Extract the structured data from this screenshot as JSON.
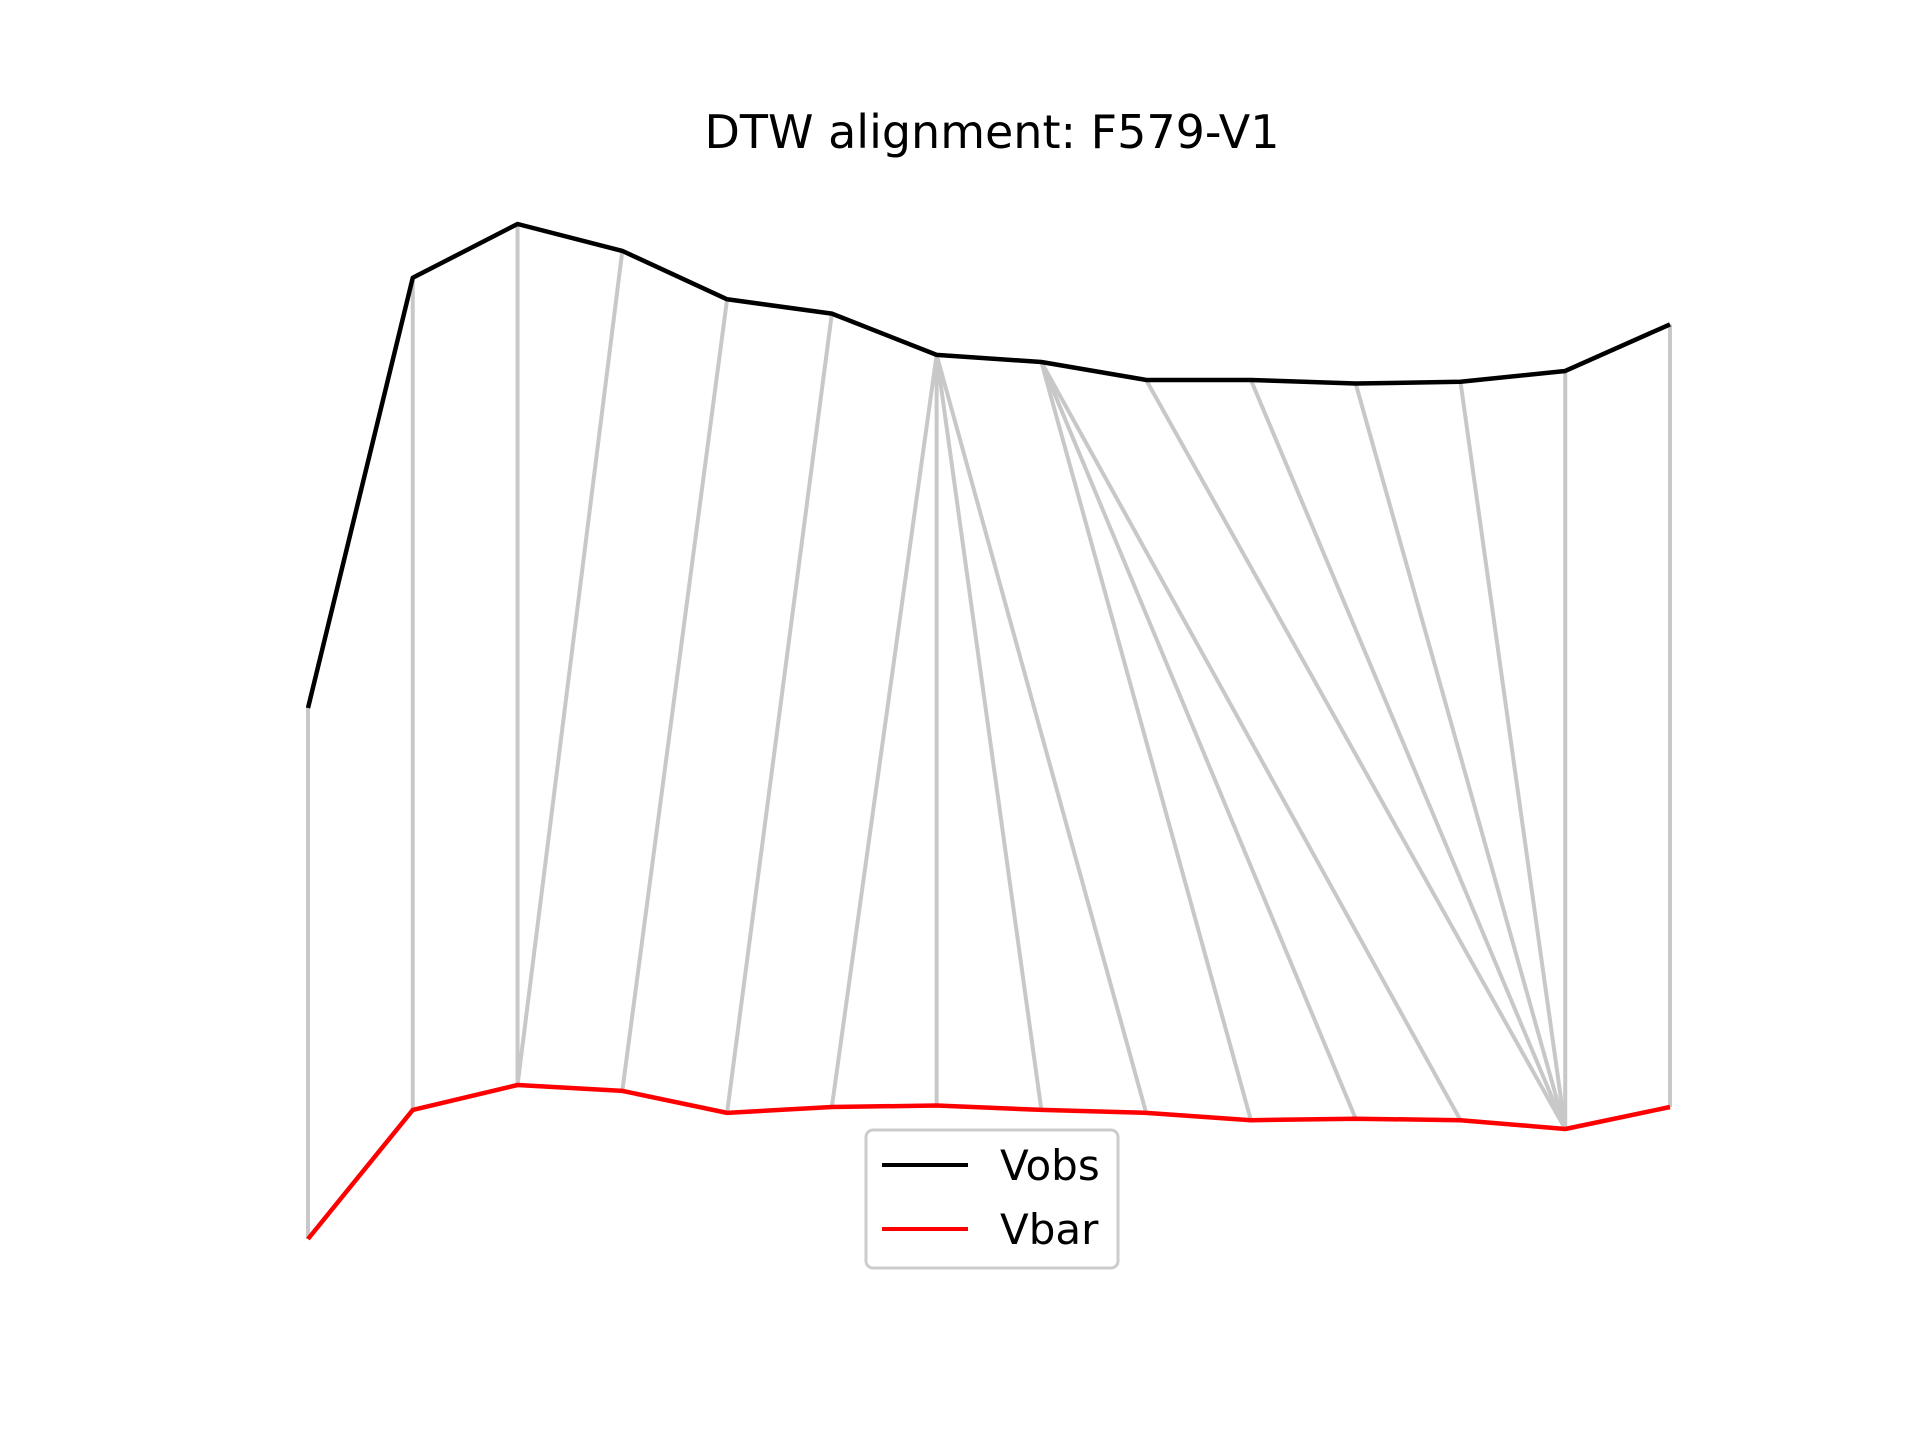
{
  "chart_data": {
    "type": "line",
    "title": "DTW alignment: F579-V1",
    "xlabel": "",
    "ylabel": "",
    "axes_visible": false,
    "grid": false,
    "legend_position": "lower center",
    "x": [
      0,
      1,
      2,
      3,
      4,
      5,
      6,
      7,
      8,
      9,
      10,
      11,
      12,
      13
    ],
    "series": [
      {
        "name": "Vobs",
        "color": "#000000",
        "values": [
          0.0,
          2.4,
          2.7,
          2.55,
          2.28,
          2.2,
          1.97,
          1.93,
          1.83,
          1.83,
          1.81,
          1.82,
          1.88,
          2.14
        ]
      },
      {
        "name": "Vbar",
        "color": "#ff0000",
        "values": [
          0.0,
          0.88,
          1.05,
          1.01,
          0.86,
          0.9,
          0.91,
          0.88,
          0.86,
          0.81,
          0.82,
          0.81,
          0.75,
          0.9
        ]
      }
    ],
    "alignment": {
      "color": "#c8c8c8",
      "pairs": [
        [
          0,
          0
        ],
        [
          1,
          1
        ],
        [
          2,
          2
        ],
        [
          3,
          2
        ],
        [
          4,
          3
        ],
        [
          5,
          4
        ],
        [
          6,
          5
        ],
        [
          6,
          6
        ],
        [
          6,
          7
        ],
        [
          6,
          8
        ],
        [
          7,
          9
        ],
        [
          7,
          10
        ],
        [
          7,
          11
        ],
        [
          8,
          12
        ],
        [
          9,
          12
        ],
        [
          10,
          12
        ],
        [
          11,
          12
        ],
        [
          12,
          12
        ],
        [
          13,
          13
        ]
      ]
    }
  }
}
